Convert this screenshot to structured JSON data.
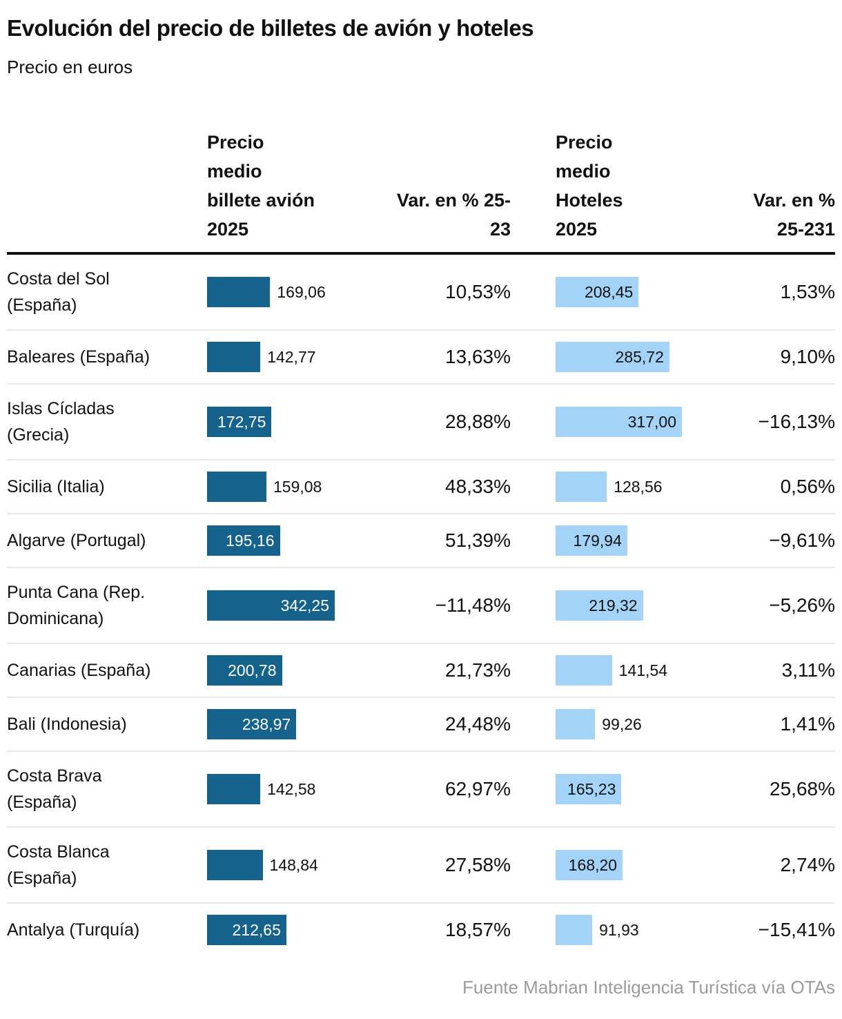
{
  "header": {
    "title": "Evolución del precio de billetes de avión y hoteles",
    "subtitle": "Precio en euros"
  },
  "table": {
    "columns": [
      "Precio\nmedio\nbillete avión\n2025",
      "Var. en % 25-\n23",
      "Precio\nmedio\nHoteles\n2025",
      "Var. en %\n25-231"
    ],
    "rows": [
      {
        "label": "Costa del Sol\n(España)",
        "avion": "169,06",
        "avion_value": 169.06,
        "var_avion": "10,53%",
        "hotel": "208,45",
        "hotel_value": 208.45,
        "var_hotel": "1,53%"
      },
      {
        "label": "Baleares (España)",
        "avion": "142,77",
        "avion_value": 142.77,
        "var_avion": "13,63%",
        "hotel": "285,72",
        "hotel_value": 285.72,
        "var_hotel": "9,10%"
      },
      {
        "label": "Islas Cícladas\n(Grecia)",
        "avion": "172,75",
        "avion_value": 172.75,
        "var_avion": "28,88%",
        "hotel": "317,00",
        "hotel_value": 317.0,
        "var_hotel": "−16,13%"
      },
      {
        "label": "Sicilia (Italia)",
        "avion": "159,08",
        "avion_value": 159.08,
        "var_avion": "48,33%",
        "hotel": "128,56",
        "hotel_value": 128.56,
        "var_hotel": "0,56%"
      },
      {
        "label": "Algarve (Portugal)",
        "avion": "195,16",
        "avion_value": 195.16,
        "var_avion": "51,39%",
        "hotel": "179,94",
        "hotel_value": 179.94,
        "var_hotel": "−9,61%"
      },
      {
        "label": "Punta Cana (Rep.\nDominicana)",
        "avion": "342,25",
        "avion_value": 342.25,
        "var_avion": "−11,48%",
        "hotel": "219,32",
        "hotel_value": 219.32,
        "var_hotel": "−5,26%"
      },
      {
        "label": "Canarias (España)",
        "avion": "200,78",
        "avion_value": 200.78,
        "var_avion": "21,73%",
        "hotel": "141,54",
        "hotel_value": 141.54,
        "var_hotel": "3,11%"
      },
      {
        "label": "Bali (Indonesia)",
        "avion": "238,97",
        "avion_value": 238.97,
        "var_avion": "24,48%",
        "hotel": "99,26",
        "hotel_value": 99.26,
        "var_hotel": "1,41%"
      },
      {
        "label": "Costa Brava\n(España)",
        "avion": "142,58",
        "avion_value": 142.58,
        "var_avion": "62,97%",
        "hotel": "165,23",
        "hotel_value": 165.23,
        "var_hotel": "25,68%"
      },
      {
        "label": "Costa Blanca\n(España)",
        "avion": "148,84",
        "avion_value": 148.84,
        "var_avion": "27,58%",
        "hotel": "168,20",
        "hotel_value": 168.2,
        "var_hotel": "2,74%"
      },
      {
        "label": "Antalya (Turquía)",
        "avion": "212,65",
        "avion_value": 212.65,
        "var_avion": "18,57%",
        "hotel": "91,93",
        "hotel_value": 91.93,
        "var_hotel": "−15,41%"
      }
    ]
  },
  "source": "Fuente Mabrian Inteligencia Turística vía OTAs",
  "colors": {
    "bar_avion": "#15638c",
    "bar_hotel": "#a3d3f6",
    "header_rule": "#111111",
    "row_divider": "#e9e9e9",
    "source_text": "#9b9b9b",
    "text": "#111111"
  },
  "chart_data": {
    "type": "bar",
    "title": "Evolución del precio de billetes de avión y hoteles",
    "subtitle": "Precio en euros",
    "categories": [
      "Costa del Sol (España)",
      "Baleares (España)",
      "Islas Cícladas (Grecia)",
      "Sicilia (Italia)",
      "Algarve (Portugal)",
      "Punta Cana (Rep. Dominicana)",
      "Canarias (España)",
      "Bali (Indonesia)",
      "Costa Brava (España)",
      "Costa Blanca (España)",
      "Antalya (Turquía)"
    ],
    "series": [
      {
        "name": "Precio medio billete avión 2025",
        "values": [
          169.06,
          142.77,
          172.75,
          159.08,
          195.16,
          342.25,
          200.78,
          238.97,
          142.58,
          148.84,
          212.65
        ]
      },
      {
        "name": "Var. en % 25-23",
        "values": [
          10.53,
          13.63,
          28.88,
          48.33,
          51.39,
          -11.48,
          21.73,
          24.48,
          62.97,
          27.58,
          18.57
        ]
      },
      {
        "name": "Precio medio Hoteles 2025",
        "values": [
          208.45,
          285.72,
          317.0,
          128.56,
          179.94,
          219.32,
          141.54,
          99.26,
          165.23,
          168.2,
          91.93
        ]
      },
      {
        "name": "Var. en % 25-231",
        "values": [
          1.53,
          9.1,
          -16.13,
          0.56,
          -9.61,
          -5.26,
          3.11,
          1.41,
          25.68,
          2.74,
          -15.41
        ]
      }
    ],
    "layout": {
      "orientation": "horizontal",
      "grid": false,
      "legend": "none",
      "bar_xrange_avion": [
        0,
        342.25
      ],
      "bar_xrange_hotel": [
        0,
        317.0
      ]
    },
    "source": "Fuente Mabrian Inteligencia Turística vía OTAs"
  }
}
